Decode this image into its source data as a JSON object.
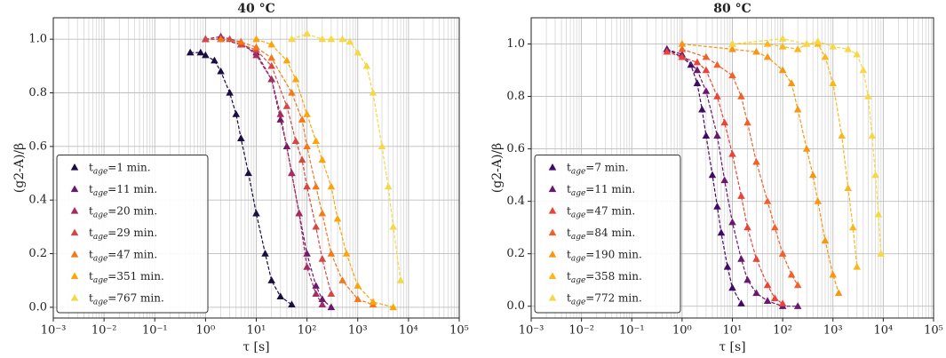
{
  "chart_data": [
    {
      "type": "scatter",
      "title": "40 °C",
      "x_label": "τ [s]",
      "y_label": "(g2-A)/β",
      "xscale": "log",
      "grid": true,
      "legend": "lower left",
      "xlim": [
        0.001,
        100000
      ],
      "ylim": [
        -0.04,
        1.08
      ],
      "xticks": [
        {
          "value": 0.001,
          "label": "10⁻³"
        },
        {
          "value": 0.01,
          "label": "10⁻²"
        },
        {
          "value": 0.1,
          "label": "10⁻¹"
        },
        {
          "value": 1,
          "label": "10⁰"
        },
        {
          "value": 10,
          "label": "10¹"
        },
        {
          "value": 100,
          "label": "10²"
        },
        {
          "value": 1000,
          "label": "10³"
        },
        {
          "value": 10000,
          "label": "10⁴"
        },
        {
          "value": 100000,
          "label": "10⁵"
        }
      ],
      "yticks": [
        {
          "value": 0,
          "label": "0.0"
        },
        0.2,
        0.4,
        0.6,
        0.8,
        {
          "value": 1,
          "label": "1.0"
        }
      ],
      "series": [
        {
          "name": "tage=1 min.",
          "color": "#1b0c41",
          "x": [
            0.5,
            0.8,
            1,
            1.5,
            2,
            3,
            4,
            5,
            7,
            10,
            15,
            20,
            30,
            50
          ],
          "values": [
            0.95,
            0.95,
            0.94,
            0.92,
            0.88,
            0.8,
            0.72,
            0.63,
            0.5,
            0.35,
            0.2,
            0.1,
            0.04,
            0.01
          ]
        },
        {
          "name": "tage=11 min.",
          "color": "#6a176e",
          "x": [
            1,
            2,
            5,
            10,
            20,
            30,
            40,
            50,
            70,
            100,
            150,
            200,
            300
          ],
          "values": [
            1.0,
            1.0,
            0.98,
            0.95,
            0.85,
            0.7,
            0.6,
            0.5,
            0.35,
            0.2,
            0.08,
            0.03,
            0.0
          ]
        },
        {
          "name": "tage=20 min.",
          "color": "#a52c60",
          "x": [
            1,
            2,
            5,
            10,
            20,
            30,
            50,
            70,
            100,
            150,
            200
          ],
          "values": [
            1.0,
            1.01,
            0.99,
            0.94,
            0.85,
            0.72,
            0.5,
            0.35,
            0.15,
            0.05,
            0.01
          ]
        },
        {
          "name": "tage=29 min.",
          "color": "#d44842",
          "x": [
            1,
            3,
            5,
            10,
            20,
            40,
            60,
            80,
            100,
            150,
            200,
            300
          ],
          "values": [
            1.0,
            1.0,
            0.98,
            0.96,
            0.9,
            0.75,
            0.62,
            0.55,
            0.45,
            0.3,
            0.18,
            0.05
          ]
        },
        {
          "name": "tage=47 min.",
          "color": "#f37819",
          "x": [
            2,
            5,
            10,
            20,
            50,
            80,
            100,
            150,
            200,
            300,
            500,
            1000,
            2000
          ],
          "values": [
            1.0,
            0.99,
            0.97,
            0.93,
            0.8,
            0.7,
            0.6,
            0.45,
            0.35,
            0.2,
            0.1,
            0.03,
            0.01
          ]
        },
        {
          "name": "tage=351 min.",
          "color": "#fca50a",
          "x": [
            10,
            20,
            40,
            60,
            100,
            150,
            200,
            300,
            400,
            600,
            1000,
            2000,
            5000
          ],
          "values": [
            1.0,
            0.98,
            0.92,
            0.85,
            0.72,
            0.62,
            0.55,
            0.45,
            0.33,
            0.2,
            0.08,
            0.02,
            0.0
          ]
        },
        {
          "name": "tage=767 min.",
          "color": "#f6d746",
          "x": [
            50,
            100,
            200,
            300,
            500,
            700,
            1000,
            1500,
            2000,
            3000,
            4000,
            5000,
            7000
          ],
          "values": [
            1.0,
            1.02,
            1.0,
            1.0,
            1.0,
            0.99,
            0.95,
            0.9,
            0.8,
            0.6,
            0.45,
            0.3,
            0.1
          ]
        }
      ]
    },
    {
      "type": "scatter",
      "title": "80 °C",
      "x_label": "τ [s]",
      "y_label": "(g2-A)/β",
      "xscale": "log",
      "grid": true,
      "legend": "lower left",
      "xlim": [
        0.001,
        100000
      ],
      "ylim": [
        -0.045,
        1.1
      ],
      "xticks": [
        {
          "value": 0.001,
          "label": "10⁻³"
        },
        {
          "value": 0.01,
          "label": "10⁻²"
        },
        {
          "value": 0.1,
          "label": "10⁻¹"
        },
        {
          "value": 1,
          "label": "10⁰"
        },
        {
          "value": 10,
          "label": "10¹"
        },
        {
          "value": 100,
          "label": "10²"
        },
        {
          "value": 1000,
          "label": "10³"
        },
        {
          "value": 10000,
          "label": "10⁴"
        },
        {
          "value": 100000,
          "label": "10⁵"
        }
      ],
      "yticks": [
        {
          "value": 0,
          "label": "0.0"
        },
        0.2,
        0.4,
        0.6,
        0.8,
        {
          "value": 1,
          "label": "1.0"
        }
      ],
      "series": [
        {
          "name": "tage=7 min.",
          "color": "#420a68",
          "x": [
            0.5,
            1,
            1.5,
            2,
            2.5,
            3,
            4,
            5,
            6,
            8,
            10,
            15
          ],
          "values": [
            0.98,
            0.95,
            0.92,
            0.85,
            0.75,
            0.65,
            0.5,
            0.38,
            0.28,
            0.15,
            0.07,
            0.01
          ]
        },
        {
          "name": "tage=11 min.",
          "color": "#6a176e",
          "x": [
            0.5,
            1,
            2,
            3,
            5,
            7,
            10,
            15,
            20,
            30,
            50,
            100,
            200
          ],
          "values": [
            0.98,
            0.96,
            0.9,
            0.82,
            0.65,
            0.48,
            0.32,
            0.18,
            0.1,
            0.05,
            0.02,
            0.0,
            0.0
          ]
        },
        {
          "name": "tage=47 min.",
          "color": "#e8443a",
          "x": [
            0.5,
            1,
            2,
            3,
            5,
            7,
            10,
            15,
            20,
            30,
            50,
            70,
            100
          ],
          "values": [
            0.97,
            0.95,
            0.93,
            0.9,
            0.8,
            0.7,
            0.58,
            0.42,
            0.3,
            0.18,
            0.08,
            0.03,
            0.01
          ]
        },
        {
          "name": "tage=84 min.",
          "color": "#f1602a",
          "x": [
            1,
            3,
            5,
            10,
            15,
            20,
            30,
            50,
            70,
            100,
            150,
            200
          ],
          "values": [
            0.98,
            0.95,
            0.92,
            0.88,
            0.8,
            0.7,
            0.55,
            0.4,
            0.3,
            0.2,
            0.12,
            0.08
          ]
        },
        {
          "name": "tage=190 min.",
          "color": "#f89511",
          "x": [
            1,
            10,
            30,
            50,
            100,
            150,
            200,
            300,
            400,
            500,
            700,
            1000,
            1300
          ],
          "values": [
            1.0,
            0.98,
            0.97,
            0.95,
            0.9,
            0.85,
            0.75,
            0.6,
            0.5,
            0.4,
            0.25,
            0.12,
            0.05
          ]
        },
        {
          "name": "tage=358 min.",
          "color": "#fbb61a",
          "x": [
            10,
            50,
            100,
            200,
            300,
            500,
            700,
            1000,
            1500,
            2000,
            2500,
            3000
          ],
          "values": [
            1.0,
            1.0,
            0.99,
            0.98,
            1.0,
            1.0,
            0.95,
            0.85,
            0.65,
            0.45,
            0.3,
            0.15
          ]
        },
        {
          "name": "tage=772 min.",
          "color": "#f6d746",
          "x": [
            10,
            100,
            300,
            500,
            1000,
            2000,
            3000,
            4000,
            5000,
            6000,
            7000,
            8000,
            9000
          ],
          "values": [
            1.0,
            1.02,
            1.0,
            1.01,
            0.99,
            0.98,
            0.96,
            0.9,
            0.8,
            0.65,
            0.5,
            0.35,
            0.2
          ]
        }
      ]
    }
  ]
}
